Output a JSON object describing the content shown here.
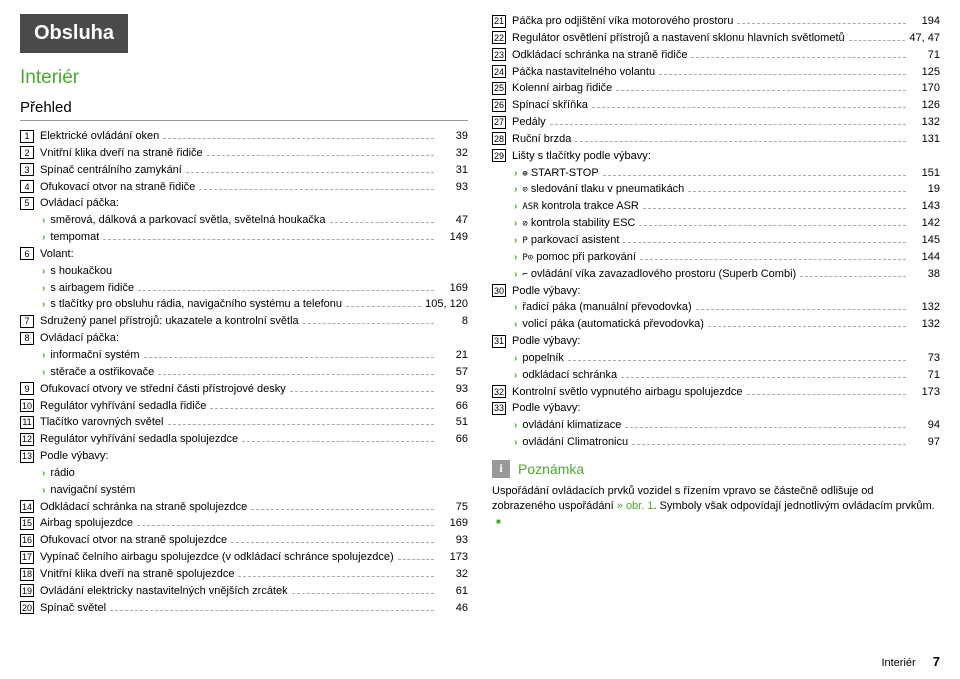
{
  "heading": "Obsluha",
  "section": "Interiér",
  "subsection": "Přehled",
  "left_items": [
    {
      "n": "1",
      "t": "Elektrické ovládání oken",
      "p": "39"
    },
    {
      "n": "2",
      "t": "Vnitřní klika dveří na straně řidiče",
      "p": "32"
    },
    {
      "n": "3",
      "t": "Spínač centrálního zamykání",
      "p": "31"
    },
    {
      "n": "4",
      "t": "Ofukovací otvor na straně řidiče",
      "p": "93"
    },
    {
      "n": "5",
      "t": "Ovládací páčka:",
      "p": ""
    },
    {
      "b": true,
      "t": "směrová, dálková a parkovací světla, světelná houkačka",
      "p": "47"
    },
    {
      "b": true,
      "t": "tempomat",
      "p": "149"
    },
    {
      "n": "6",
      "t": "Volant:",
      "p": ""
    },
    {
      "b": true,
      "t": "s houkačkou",
      "p": ""
    },
    {
      "b": true,
      "t": "s airbagem řidiče",
      "p": "169"
    },
    {
      "b": true,
      "t": "s tlačítky pro obsluhu rádia, navigačního systému a telefonu",
      "p": "105, 120"
    },
    {
      "n": "7",
      "t": "Sdružený panel přístrojů: ukazatele a kontrolní světla",
      "p": "8"
    },
    {
      "n": "8",
      "t": "Ovládací páčka:",
      "p": ""
    },
    {
      "b": true,
      "t": "informační systém",
      "p": "21"
    },
    {
      "b": true,
      "t": "stěrače a ostřikovače",
      "p": "57"
    },
    {
      "n": "9",
      "t": "Ofukovací otvory ve střední části přístrojové desky",
      "p": "93"
    },
    {
      "n": "10",
      "t": "Regulátor vyhřívání sedadla řidiče",
      "p": "66"
    },
    {
      "n": "11",
      "t": "Tlačítko varovných světel",
      "p": "51"
    },
    {
      "n": "12",
      "t": "Regulátor vyhřívání sedadla spolujezdce",
      "p": "66"
    },
    {
      "n": "13",
      "t": "Podle výbavy:",
      "p": ""
    },
    {
      "b": true,
      "t": "rádio",
      "p": ""
    },
    {
      "b": true,
      "t": "navigační systém",
      "p": ""
    },
    {
      "n": "14",
      "t": "Odkládací schránka na straně spolujezdce",
      "p": "75"
    },
    {
      "n": "15",
      "t": "Airbag spolujezdce",
      "p": "169"
    },
    {
      "n": "16",
      "t": "Ofukovací otvor na straně spolujezdce",
      "p": "93"
    },
    {
      "n": "17",
      "t": "Vypínač čelního airbagu spolujezdce (v odkládací schránce spolujezdce)",
      "p": "173"
    },
    {
      "n": "18",
      "t": "Vnitřní klika dveří na straně spolujezdce",
      "p": "32"
    },
    {
      "n": "19",
      "t": "Ovládání elektricky nastavitelných vnějších zrcátek",
      "p": "61"
    },
    {
      "n": "20",
      "t": "Spínač světel",
      "p": "46"
    }
  ],
  "right_items": [
    {
      "n": "21",
      "t": "Páčka pro odjištění víka motorového prostoru",
      "p": "194"
    },
    {
      "n": "22",
      "t": "Regulátor osvětlení přístrojů a nastavení sklonu hlavních světlometů",
      "p": "47, 47"
    },
    {
      "n": "23",
      "t": "Odkládací schránka na straně řidiče",
      "p": "71"
    },
    {
      "n": "24",
      "t": "Páčka nastavitelného volantu",
      "p": "125"
    },
    {
      "n": "25",
      "t": "Kolenní airbag řidiče",
      "p": "170"
    },
    {
      "n": "26",
      "t": "Spínací skříňka",
      "p": "126"
    },
    {
      "n": "27",
      "t": "Pedály",
      "p": "132"
    },
    {
      "n": "28",
      "t": "Ruční brzda",
      "p": "131"
    },
    {
      "n": "29",
      "t": "Lišty s tlačítky podle výbavy:",
      "p": ""
    },
    {
      "b": true,
      "i": "⊕",
      "t": " START-STOP",
      "p": "151"
    },
    {
      "b": true,
      "i": "⊙",
      "t": " sledování tlaku v pneumatikách",
      "p": "19"
    },
    {
      "b": true,
      "i": "ASR",
      "t": " kontrola trakce ASR",
      "p": "143"
    },
    {
      "b": true,
      "i": "⊘",
      "t": " kontrola stability ESC",
      "p": "142"
    },
    {
      "b": true,
      "i": "P",
      "t": " parkovací asistent",
      "p": "145"
    },
    {
      "b": true,
      "i": "P⊙",
      "t": " pomoc při parkování",
      "p": "144"
    },
    {
      "b": true,
      "i": "⌐",
      "t": " ovládání víka zavazadlového prostoru (Superb Combi)",
      "p": "38"
    },
    {
      "n": "30",
      "t": "Podle výbavy:",
      "p": ""
    },
    {
      "b": true,
      "t": "řadicí páka (manuální převodovka)",
      "p": "132"
    },
    {
      "b": true,
      "t": "volicí páka (automatická převodovka)",
      "p": "132"
    },
    {
      "n": "31",
      "t": "Podle výbavy:",
      "p": ""
    },
    {
      "b": true,
      "t": "popelník",
      "p": "73"
    },
    {
      "b": true,
      "t": "odkládací schránka",
      "p": "71"
    },
    {
      "n": "32",
      "t": "Kontrolní světlo vypnutého airbagu spolujezdce",
      "p": "173"
    },
    {
      "n": "33",
      "t": "Podle výbavy:",
      "p": ""
    },
    {
      "b": true,
      "t": "ovládání klimatizace",
      "p": "94"
    },
    {
      "b": true,
      "t": "ovládání Climatronicu",
      "p": "97"
    }
  ],
  "note_title": "Poznámka",
  "note_text_1": "Uspořádání ovládacích prvků vozidel s řízením vpravo se částečně odlišuje od zobrazeného uspořádání ",
  "note_link": "» obr. 1",
  "note_text_2": ". Symboly však odpovídají jednotlivým ovládacím prvkům.",
  "footer_label": "Interiér",
  "footer_page": "7"
}
